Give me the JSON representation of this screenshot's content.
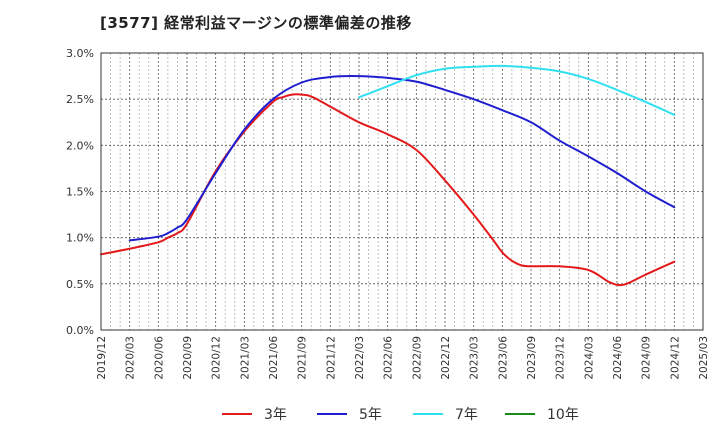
{
  "chart_data": {
    "type": "line",
    "title": "[3577]  経常利益マージンの標準偏差の推移",
    "xlabel": "",
    "ylabel": "",
    "ylim": [
      0,
      3.0
    ],
    "yticks": [
      "0.0%",
      "0.5%",
      "1.0%",
      "1.5%",
      "2.0%",
      "2.5%",
      "3.0%"
    ],
    "xticks": [
      "2019/12",
      "2020/03",
      "2020/06",
      "2020/09",
      "2020/12",
      "2021/03",
      "2021/06",
      "2021/09",
      "2021/12",
      "2022/03",
      "2022/06",
      "2022/09",
      "2022/12",
      "2023/03",
      "2023/06",
      "2023/09",
      "2023/12",
      "2024/03",
      "2024/06",
      "2024/09",
      "2024/12",
      "2025/03"
    ],
    "grid": true,
    "legend": "bottom",
    "series": [
      {
        "name": "3年",
        "color": "#e31a1c",
        "x": [
          "2019/12",
          "2020/03",
          "2020/06",
          "2020/07",
          "2020/08",
          "2020/09",
          "2020/12",
          "2021/03",
          "2021/06",
          "2021/07",
          "2021/08",
          "2021/09",
          "2021/10",
          "2021/12",
          "2022/03",
          "2022/06",
          "2022/09",
          "2022/12",
          "2023/03",
          "2023/05",
          "2023/06",
          "2023/07",
          "2023/08",
          "2023/09",
          "2023/12",
          "2024/03",
          "2024/05",
          "2024/06",
          "2024/07",
          "2024/09",
          "2024/12"
        ],
        "values": [
          0.82,
          0.88,
          0.95,
          1.0,
          1.05,
          1.15,
          1.72,
          2.15,
          2.47,
          2.52,
          2.55,
          2.55,
          2.53,
          2.42,
          2.25,
          2.12,
          1.95,
          1.62,
          1.25,
          0.98,
          0.84,
          0.75,
          0.7,
          0.69,
          0.69,
          0.65,
          0.53,
          0.49,
          0.5,
          0.6,
          0.74
        ]
      },
      {
        "name": "5年",
        "color": "#1f1fcf",
        "x": [
          "2020/03",
          "2020/06",
          "2020/07",
          "2020/08",
          "2020/09",
          "2020/12",
          "2021/03",
          "2021/06",
          "2021/09",
          "2021/12",
          "2022/03",
          "2022/06",
          "2022/09",
          "2022/12",
          "2023/03",
          "2023/06",
          "2023/09",
          "2023/12",
          "2024/03",
          "2024/06",
          "2024/09",
          "2024/12"
        ],
        "values": [
          0.97,
          1.01,
          1.05,
          1.11,
          1.2,
          1.7,
          2.17,
          2.5,
          2.68,
          2.74,
          2.75,
          2.73,
          2.69,
          2.6,
          2.5,
          2.38,
          2.25,
          2.05,
          1.88,
          1.7,
          1.5,
          1.33
        ]
      },
      {
        "name": "7年",
        "color": "#30e0f0",
        "x": [
          "2022/03",
          "2022/06",
          "2022/09",
          "2022/12",
          "2023/03",
          "2023/06",
          "2023/09",
          "2023/12",
          "2024/03",
          "2024/06",
          "2024/09",
          "2024/12"
        ],
        "values": [
          2.52,
          2.64,
          2.76,
          2.83,
          2.85,
          2.86,
          2.84,
          2.8,
          2.72,
          2.6,
          2.47,
          2.33
        ]
      },
      {
        "name": "10年",
        "color": "#1a8a1a",
        "x": [],
        "values": []
      }
    ]
  }
}
